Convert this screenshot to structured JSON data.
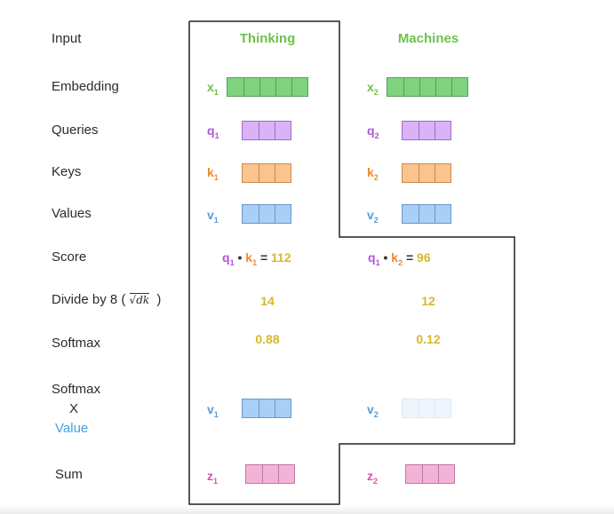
{
  "row_labels": {
    "input": "Input",
    "embedding": "Embedding",
    "queries": "Queries",
    "keys": "Keys",
    "values": "Values",
    "score": "Score",
    "divide": "Divide by 8 (",
    "divide_close": ")",
    "softmax": "Softmax",
    "softmax_x_line1": "Softmax",
    "softmax_x_line2": "X",
    "softmax_x_line3": "Value",
    "sum": "Sum"
  },
  "words": {
    "word1": "Thinking",
    "word2": "Machines"
  },
  "symbols": {
    "x": "x",
    "q": "q",
    "k": "k",
    "v": "v",
    "z": "z",
    "sub1": "1",
    "sub2": "2",
    "dot": "•",
    "eq": "=",
    "sqrt_dk": "√dk"
  },
  "values": {
    "score1": "112",
    "score2": "96",
    "divided1": "14",
    "divided2": "12",
    "softmax1": "0.88",
    "softmax2": "0.12"
  },
  "colors": {
    "input_word": "#6cc24a",
    "embedding": "#7fd37f",
    "query": "#d9b3f5",
    "key": "#fbc48f",
    "value": "#a9cff7",
    "value_faded": "#eef5fd",
    "sum": "#f2b3d6",
    "number": "#d6b82c",
    "value_label": "#45a0e6"
  }
}
